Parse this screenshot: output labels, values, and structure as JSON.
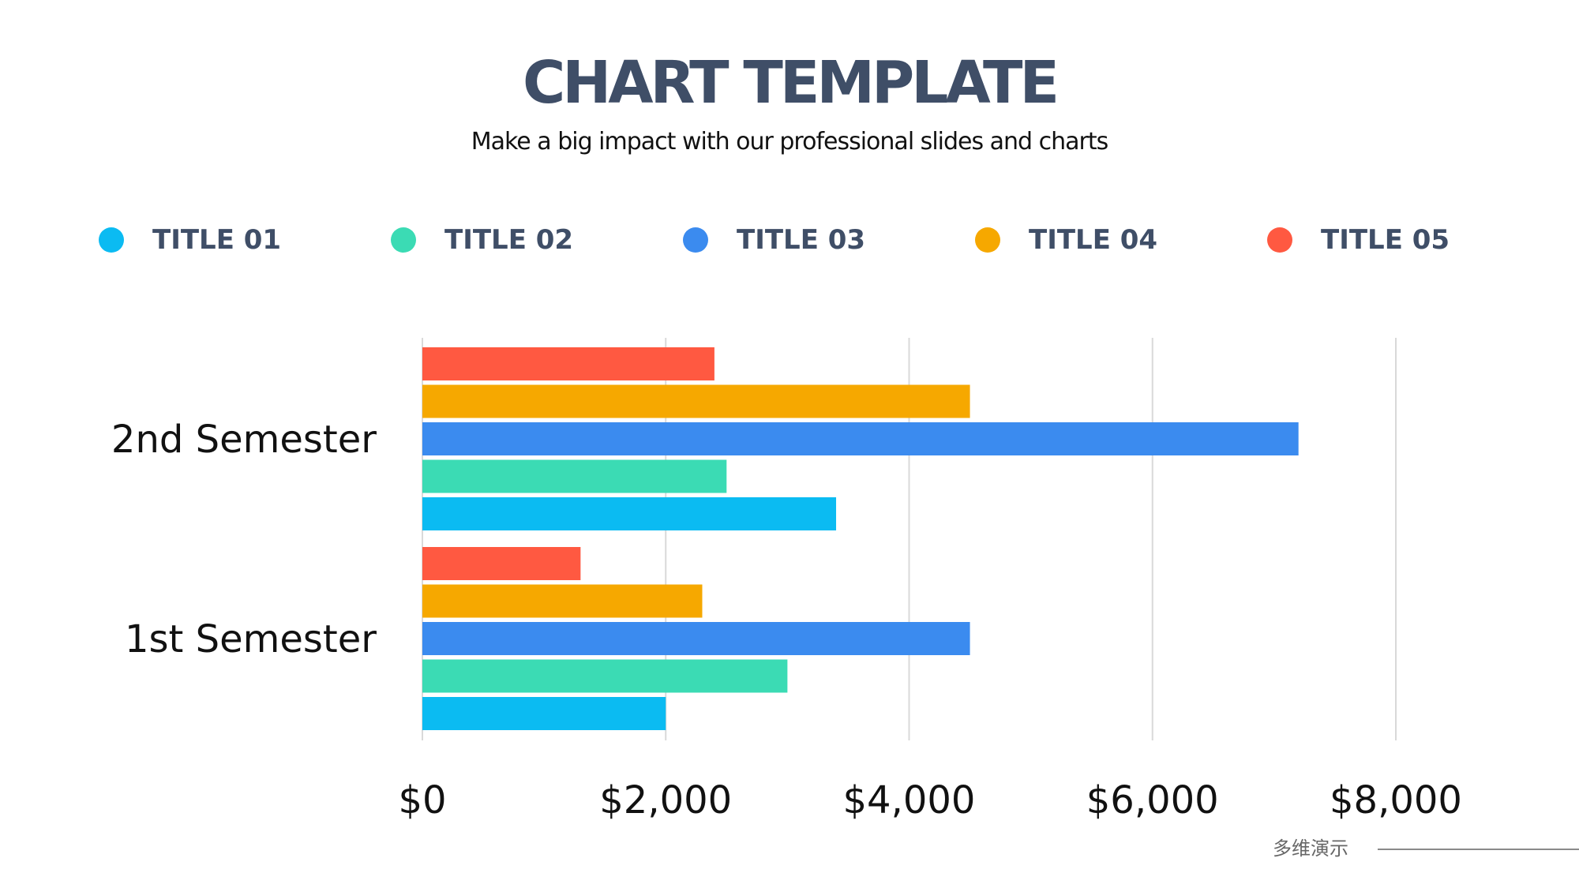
{
  "header": {
    "title": "CHART TEMPLATE",
    "subtitle": "Make a big impact with our professional slides and charts"
  },
  "watermark": "多维演示",
  "chart_data": {
    "type": "bar",
    "orientation": "horizontal",
    "categories": [
      "1st Semester",
      "2nd Semester"
    ],
    "series": [
      {
        "name": "TITLE 01",
        "color": "#0bbbf2",
        "values": [
          2000,
          3400
        ]
      },
      {
        "name": "TITLE 02",
        "color": "#3bdbb4",
        "values": [
          3000,
          2500
        ]
      },
      {
        "name": "TITLE 03",
        "color": "#3b8bef",
        "values": [
          4500,
          7200
        ]
      },
      {
        "name": "TITLE 04",
        "color": "#f6a800",
        "values": [
          2300,
          4500
        ]
      },
      {
        "name": "TITLE 05",
        "color": "#ff5941",
        "values": [
          1300,
          2400
        ]
      }
    ],
    "xlim": [
      0,
      8000
    ],
    "ticks": [
      0,
      2000,
      4000,
      6000,
      8000
    ],
    "tick_labels": [
      "$0",
      "$2,000",
      "$4,000",
      "$6,000",
      "$8,000"
    ],
    "grid": true,
    "legend_position": "top"
  }
}
